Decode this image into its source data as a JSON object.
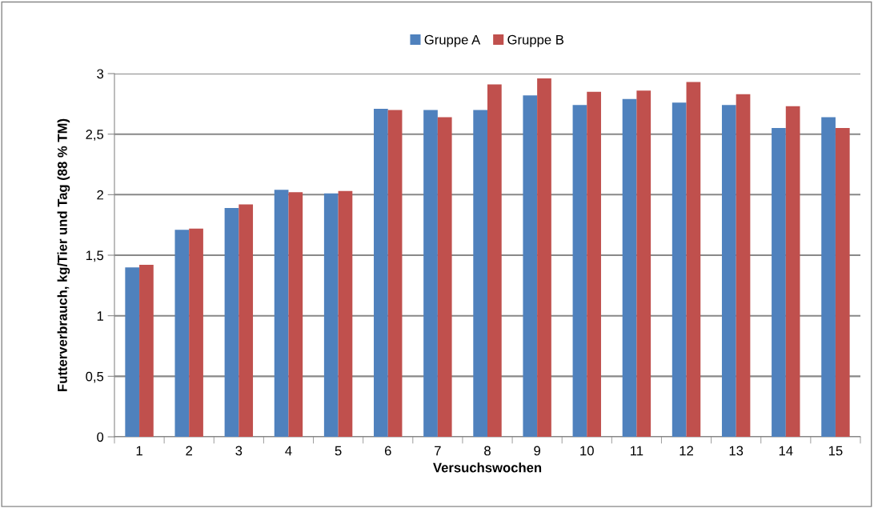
{
  "chart_data": {
    "type": "bar",
    "xlabel": "Versuchswochen",
    "ylabel": "Futterverbrauch, kg/Tier und Tag (88 % TM)",
    "categories": [
      "1",
      "2",
      "3",
      "4",
      "5",
      "6",
      "7",
      "8",
      "9",
      "10",
      "11",
      "12",
      "13",
      "14",
      "15"
    ],
    "series": [
      {
        "name": "Gruppe A",
        "color": "#4f81bd",
        "values": [
          1.4,
          1.71,
          1.89,
          2.04,
          2.01,
          2.71,
          2.7,
          2.7,
          2.82,
          2.74,
          2.79,
          2.76,
          2.74,
          2.55,
          2.64
        ]
      },
      {
        "name": "Gruppe B",
        "color": "#c0504d",
        "values": [
          1.42,
          1.72,
          1.92,
          2.02,
          2.03,
          2.7,
          2.64,
          2.91,
          2.96,
          2.85,
          2.86,
          2.93,
          2.83,
          2.73,
          2.55
        ]
      }
    ],
    "ylim": [
      0,
      3
    ],
    "yticks": [
      0,
      {
        "value": 0.5,
        "label": "0,5"
      },
      1,
      {
        "value": 1.5,
        "label": "1,5"
      },
      2,
      {
        "value": 2.5,
        "label": "2,5"
      },
      3
    ],
    "grid": "y",
    "legend": "top"
  }
}
